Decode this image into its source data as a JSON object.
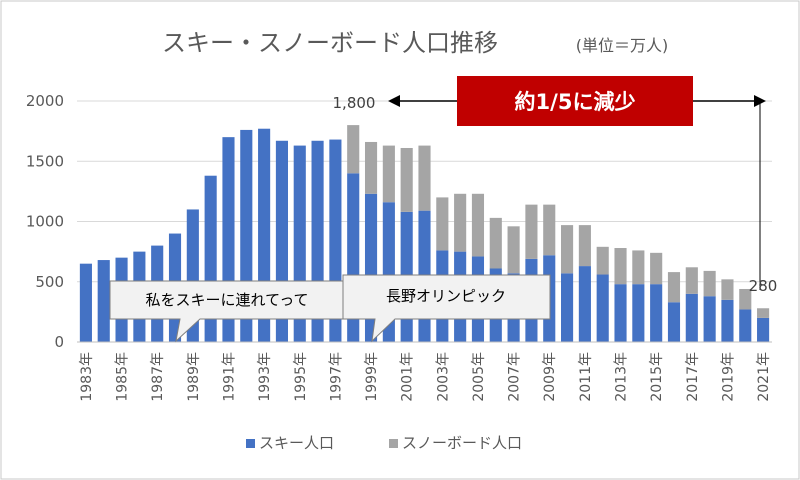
{
  "title": "スキー・スノーボード人口推移",
  "unit_label": "(単位＝万人)",
  "banner": {
    "text": "約1/5に減少",
    "color": "#c00000"
  },
  "annotations": {
    "peak_label": "1,800",
    "end_label": "280",
    "callout_1": "私をスキーに連れてって",
    "callout_2": "長野オリンピック"
  },
  "chart_data": {
    "type": "bar",
    "stacked": true,
    "title": "スキー・スノーボード人口推移",
    "xlabel": "",
    "ylabel": "",
    "ylim": [
      0,
      2000
    ],
    "yticks": [
      0,
      500,
      1000,
      1500,
      2000
    ],
    "grid": true,
    "legend_position": "bottom",
    "categories": [
      "1983年",
      "1984年",
      "1985年",
      "1986年",
      "1987年",
      "1988年",
      "1989年",
      "1990年",
      "1991年",
      "1992年",
      "1993年",
      "1994年",
      "1995年",
      "1996年",
      "1997年",
      "1998年",
      "1999年",
      "2000年",
      "2001年",
      "2002年",
      "2003年",
      "2004年",
      "2005年",
      "2006年",
      "2007年",
      "2008年",
      "2009年",
      "2010年",
      "2011年",
      "2012年",
      "2013年",
      "2014年",
      "2015年",
      "2016年",
      "2017年",
      "2018年",
      "2019年",
      "2020年",
      "2021年"
    ],
    "tick_labels": [
      "1983年",
      "1985年",
      "1987年",
      "1989年",
      "1991年",
      "1993年",
      "1995年",
      "1997年",
      "1999年",
      "2001年",
      "2003年",
      "2005年",
      "2007年",
      "2009年",
      "2011年",
      "2013年",
      "2015年",
      "2017年",
      "2019年",
      "2021年"
    ],
    "series": [
      {
        "name": "スキー人口",
        "color": "#4472c4",
        "values": [
          650,
          680,
          700,
          750,
          800,
          900,
          1100,
          1380,
          1700,
          1760,
          1770,
          1670,
          1630,
          1670,
          1680,
          1400,
          1230,
          1160,
          1080,
          1090,
          760,
          750,
          710,
          610,
          570,
          690,
          720,
          570,
          630,
          560,
          480,
          480,
          480,
          330,
          400,
          380,
          350,
          270,
          200
        ]
      },
      {
        "name": "スノーボード人口",
        "color": "#a5a5a5",
        "values": [
          0,
          0,
          0,
          0,
          0,
          0,
          0,
          0,
          0,
          0,
          0,
          0,
          0,
          0,
          0,
          400,
          430,
          470,
          530,
          540,
          440,
          480,
          520,
          420,
          390,
          450,
          420,
          400,
          340,
          230,
          300,
          280,
          260,
          250,
          220,
          210,
          170,
          170,
          80
        ]
      }
    ]
  }
}
